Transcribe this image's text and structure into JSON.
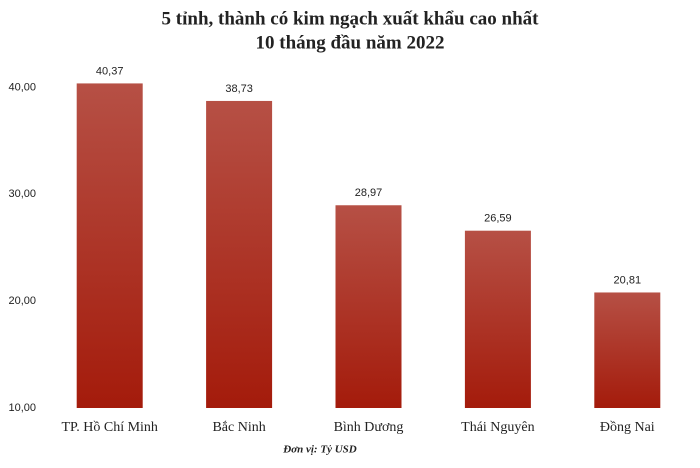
{
  "chart_data": {
    "type": "bar",
    "title": "5 tỉnh, thành có kim ngạch xuất khẩu cao nhất",
    "subtitle": "10 tháng đầu năm 2022",
    "categories": [
      "TP. Hồ Chí Minh",
      "Bắc Ninh",
      "Bình Dương",
      "Thái Nguyên",
      "Đồng Nai"
    ],
    "values": [
      40.37,
      38.73,
      28.97,
      26.59,
      20.81
    ],
    "value_labels": [
      "40,37",
      "38,73",
      "28,97",
      "26,59",
      "20,81"
    ],
    "color": "#a41b0b",
    "ylim": [
      10,
      42
    ],
    "yticks": [
      {
        "value": 10,
        "label": "10,00"
      },
      {
        "value": 20,
        "label": "20,00"
      },
      {
        "value": 30,
        "label": "30,00"
      },
      {
        "value": 40,
        "label": "40,00"
      }
    ],
    "note": "Đơn vị: Tỷ USD"
  }
}
